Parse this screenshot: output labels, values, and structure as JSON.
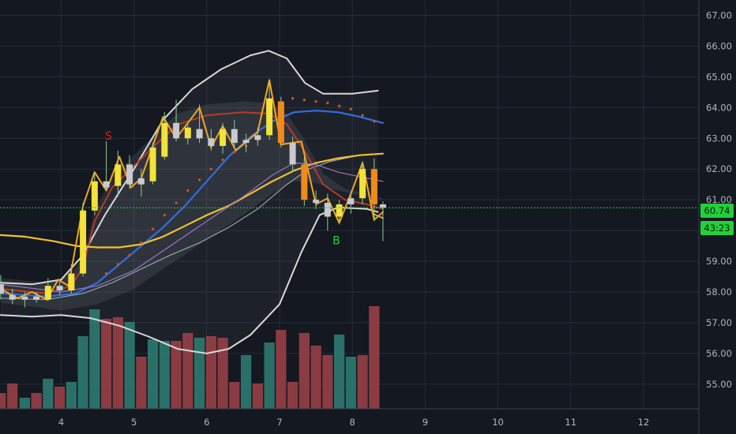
{
  "chart_data": {
    "type": "candlestick",
    "x_ticks": [
      "4",
      "5",
      "6",
      "7",
      "8",
      "9",
      "10",
      "11",
      "12"
    ],
    "y_ticks": [
      "55.00",
      "56.00",
      "57.00",
      "58.00",
      "59.00",
      "60.00",
      "61.00",
      "62.00",
      "63.00",
      "64.00",
      "65.00",
      "66.00",
      "67.00"
    ],
    "ylim": [
      54.2,
      67.5
    ],
    "xlim": [
      3.16,
      12.76
    ],
    "grid": true,
    "current_price": "60.74",
    "countdown": "43:23",
    "price_line_value": 60.74,
    "signals": [
      {
        "label": "S",
        "x": 4.65,
        "y": 62.95,
        "color": "#d01e1e"
      },
      {
        "label": "B",
        "x": 7.78,
        "y": 59.55,
        "color": "#22d03a"
      }
    ],
    "candles": [
      {
        "t": 3.17,
        "o": 58.25,
        "h": 58.55,
        "l": 57.75,
        "c": 57.95
      },
      {
        "t": 3.33,
        "o": 57.9,
        "h": 58.1,
        "l": 57.6,
        "c": 57.75
      },
      {
        "t": 3.5,
        "o": 57.75,
        "h": 58.0,
        "l": 57.5,
        "c": 57.85
      },
      {
        "t": 3.66,
        "o": 57.85,
        "h": 58.0,
        "l": 57.65,
        "c": 57.75
      },
      {
        "t": 3.82,
        "o": 57.75,
        "h": 58.45,
        "l": 57.7,
        "c": 58.2
      },
      {
        "t": 3.98,
        "o": 58.2,
        "h": 58.35,
        "l": 57.9,
        "c": 58.05
      },
      {
        "t": 4.14,
        "o": 58.05,
        "h": 58.9,
        "l": 57.95,
        "c": 58.6
      },
      {
        "t": 4.3,
        "o": 58.6,
        "h": 60.9,
        "l": 58.5,
        "c": 60.65
      },
      {
        "t": 4.46,
        "o": 60.65,
        "h": 61.9,
        "l": 60.5,
        "c": 61.6
      },
      {
        "t": 4.62,
        "o": 61.6,
        "h": 62.9,
        "l": 61.3,
        "c": 61.4
      },
      {
        "t": 4.78,
        "o": 61.45,
        "h": 62.6,
        "l": 61.1,
        "c": 62.15
      },
      {
        "t": 4.94,
        "o": 62.15,
        "h": 62.45,
        "l": 61.35,
        "c": 61.5
      },
      {
        "t": 5.1,
        "o": 61.5,
        "h": 62.0,
        "l": 61.1,
        "c": 61.7
      },
      {
        "t": 5.26,
        "o": 61.6,
        "h": 62.85,
        "l": 61.5,
        "c": 62.7
      },
      {
        "t": 5.42,
        "o": 62.4,
        "h": 63.85,
        "l": 62.3,
        "c": 63.5
      },
      {
        "t": 5.58,
        "o": 63.5,
        "h": 64.25,
        "l": 62.9,
        "c": 63.0
      },
      {
        "t": 5.74,
        "o": 63.0,
        "h": 63.5,
        "l": 62.8,
        "c": 63.35
      },
      {
        "t": 5.9,
        "o": 63.3,
        "h": 64.1,
        "l": 62.85,
        "c": 63.0
      },
      {
        "t": 6.06,
        "o": 63.0,
        "h": 63.3,
        "l": 62.6,
        "c": 62.75
      },
      {
        "t": 6.22,
        "o": 62.75,
        "h": 63.5,
        "l": 62.5,
        "c": 63.3
      },
      {
        "t": 6.38,
        "o": 63.3,
        "h": 63.6,
        "l": 62.7,
        "c": 62.85
      },
      {
        "t": 6.54,
        "o": 62.85,
        "h": 63.15,
        "l": 62.55,
        "c": 62.95
      },
      {
        "t": 6.7,
        "o": 62.95,
        "h": 63.35,
        "l": 62.75,
        "c": 63.1
      },
      {
        "t": 6.86,
        "o": 63.1,
        "h": 64.85,
        "l": 62.95,
        "c": 64.3
      },
      {
        "t": 7.02,
        "o": 64.2,
        "h": 64.35,
        "l": 62.7,
        "c": 62.85
      },
      {
        "t": 7.18,
        "o": 62.85,
        "h": 63.05,
        "l": 61.9,
        "c": 62.15
      },
      {
        "t": 7.34,
        "o": 62.15,
        "h": 62.4,
        "l": 60.8,
        "c": 61.0
      },
      {
        "t": 7.5,
        "o": 61.0,
        "h": 61.3,
        "l": 60.7,
        "c": 60.9
      },
      {
        "t": 7.66,
        "o": 60.9,
        "h": 61.2,
        "l": 60.0,
        "c": 60.45
      },
      {
        "t": 7.82,
        "o": 60.45,
        "h": 61.0,
        "l": 60.2,
        "c": 60.85
      },
      {
        "t": 7.98,
        "o": 60.85,
        "h": 61.25,
        "l": 60.55,
        "c": 61.05
      },
      {
        "t": 8.14,
        "o": 61.05,
        "h": 62.25,
        "l": 60.85,
        "c": 62.0
      },
      {
        "t": 8.3,
        "o": 62.0,
        "h": 62.35,
        "l": 60.3,
        "c": 60.85
      },
      {
        "t": 8.42,
        "o": 60.85,
        "h": 60.95,
        "l": 59.65,
        "c": 60.74
      }
    ],
    "volume": [
      {
        "t": 3.17,
        "v": 0.1,
        "up": false
      },
      {
        "t": 3.33,
        "v": 0.16,
        "up": false
      },
      {
        "t": 3.5,
        "v": 0.07,
        "up": true
      },
      {
        "t": 3.66,
        "v": 0.1,
        "up": false
      },
      {
        "t": 3.82,
        "v": 0.19,
        "up": true
      },
      {
        "t": 3.98,
        "v": 0.14,
        "up": false
      },
      {
        "t": 4.14,
        "v": 0.17,
        "up": true
      },
      {
        "t": 4.3,
        "v": 0.46,
        "up": true
      },
      {
        "t": 4.46,
        "v": 0.63,
        "up": true
      },
      {
        "t": 4.62,
        "v": 0.57,
        "up": false
      },
      {
        "t": 4.78,
        "v": 0.58,
        "up": false
      },
      {
        "t": 4.94,
        "v": 0.55,
        "up": true
      },
      {
        "t": 5.1,
        "v": 0.33,
        "up": false
      },
      {
        "t": 5.26,
        "v": 0.44,
        "up": true
      },
      {
        "t": 5.42,
        "v": 0.43,
        "up": true
      },
      {
        "t": 5.58,
        "v": 0.43,
        "up": false
      },
      {
        "t": 5.74,
        "v": 0.48,
        "up": false
      },
      {
        "t": 5.9,
        "v": 0.45,
        "up": true
      },
      {
        "t": 6.06,
        "v": 0.46,
        "up": false
      },
      {
        "t": 6.22,
        "v": 0.45,
        "up": false
      },
      {
        "t": 6.38,
        "v": 0.17,
        "up": false
      },
      {
        "t": 6.54,
        "v": 0.34,
        "up": true
      },
      {
        "t": 6.7,
        "v": 0.16,
        "up": false
      },
      {
        "t": 6.86,
        "v": 0.42,
        "up": true
      },
      {
        "t": 7.02,
        "v": 0.5,
        "up": false
      },
      {
        "t": 7.18,
        "v": 0.17,
        "up": false
      },
      {
        "t": 7.34,
        "v": 0.48,
        "up": false
      },
      {
        "t": 7.5,
        "v": 0.4,
        "up": false
      },
      {
        "t": 7.66,
        "v": 0.34,
        "up": false
      },
      {
        "t": 7.82,
        "v": 0.47,
        "up": true
      },
      {
        "t": 7.98,
        "v": 0.33,
        "up": true
      },
      {
        "t": 8.14,
        "v": 0.34,
        "up": false
      },
      {
        "t": 8.3,
        "v": 0.65,
        "up": false
      }
    ],
    "series": [
      {
        "style": "bb_upper",
        "color": "#d8d8d8",
        "points": [
          [
            3.17,
            58.3
          ],
          [
            3.6,
            58.25
          ],
          [
            4.0,
            58.4
          ],
          [
            4.3,
            59.2
          ],
          [
            4.6,
            60.5
          ],
          [
            5.0,
            62.0
          ],
          [
            5.4,
            63.6
          ],
          [
            5.8,
            64.6
          ],
          [
            6.2,
            65.25
          ],
          [
            6.6,
            65.7
          ],
          [
            6.85,
            65.85
          ],
          [
            7.1,
            65.6
          ],
          [
            7.35,
            64.8
          ],
          [
            7.6,
            64.45
          ],
          [
            8.0,
            64.45
          ],
          [
            8.35,
            64.55
          ]
        ]
      },
      {
        "style": "bb_lower",
        "color": "#d8d8d8",
        "points": [
          [
            3.17,
            57.25
          ],
          [
            3.6,
            57.2
          ],
          [
            4.0,
            57.25
          ],
          [
            4.4,
            57.15
          ],
          [
            4.8,
            56.9
          ],
          [
            5.2,
            56.55
          ],
          [
            5.6,
            56.15
          ],
          [
            6.0,
            56.0
          ],
          [
            6.3,
            56.15
          ],
          [
            6.6,
            56.6
          ],
          [
            7.0,
            57.6
          ],
          [
            7.3,
            59.3
          ],
          [
            7.55,
            60.5
          ],
          [
            7.8,
            60.75
          ],
          [
            8.2,
            60.7
          ],
          [
            8.35,
            60.6
          ]
        ]
      },
      {
        "style": "bb_mid",
        "color": "#9aa0aa",
        "points": [
          [
            3.17,
            57.8
          ],
          [
            3.8,
            57.75
          ],
          [
            4.3,
            57.95
          ],
          [
            4.7,
            58.3
          ],
          [
            5.1,
            58.75
          ],
          [
            5.5,
            59.2
          ],
          [
            5.9,
            59.6
          ],
          [
            6.3,
            60.1
          ],
          [
            6.7,
            60.7
          ],
          [
            7.1,
            61.5
          ],
          [
            7.4,
            62.0
          ],
          [
            7.7,
            62.25
          ],
          [
            8.1,
            62.45
          ],
          [
            8.35,
            62.5
          ]
        ]
      },
      {
        "style": "ema_red",
        "color": "#b83a28",
        "points": [
          [
            3.17,
            58.1
          ],
          [
            3.8,
            57.95
          ],
          [
            4.14,
            58.2
          ],
          [
            4.3,
            58.8
          ],
          [
            4.46,
            60.3
          ],
          [
            4.7,
            61.4
          ],
          [
            5.0,
            62.1
          ],
          [
            5.3,
            62.8
          ],
          [
            5.6,
            63.45
          ],
          [
            6.0,
            63.75
          ],
          [
            6.5,
            63.85
          ],
          [
            6.86,
            63.8
          ],
          [
            7.1,
            63.45
          ],
          [
            7.34,
            62.6
          ],
          [
            7.6,
            61.5
          ],
          [
            7.9,
            61.0
          ],
          [
            8.2,
            60.85
          ],
          [
            8.42,
            60.7
          ]
        ]
      },
      {
        "style": "ema_blue",
        "color": "#2f6fe0",
        "points": [
          [
            3.17,
            57.95
          ],
          [
            3.8,
            57.85
          ],
          [
            4.2,
            57.95
          ],
          [
            4.5,
            58.3
          ],
          [
            4.8,
            58.9
          ],
          [
            5.1,
            59.5
          ],
          [
            5.4,
            60.1
          ],
          [
            5.7,
            60.8
          ],
          [
            6.0,
            61.6
          ],
          [
            6.3,
            62.4
          ],
          [
            6.6,
            63.05
          ],
          [
            6.9,
            63.55
          ],
          [
            7.2,
            63.85
          ],
          [
            7.5,
            63.9
          ],
          [
            7.8,
            63.85
          ],
          [
            8.1,
            63.7
          ],
          [
            8.42,
            63.5
          ]
        ]
      },
      {
        "style": "ma_yellow",
        "color": "#f0c030",
        "points": [
          [
            3.17,
            59.85
          ],
          [
            3.5,
            59.8
          ],
          [
            3.9,
            59.65
          ],
          [
            4.2,
            59.5
          ],
          [
            4.5,
            59.45
          ],
          [
            4.8,
            59.45
          ],
          [
            5.1,
            59.55
          ],
          [
            5.4,
            59.8
          ],
          [
            5.7,
            60.15
          ],
          [
            6.0,
            60.5
          ],
          [
            6.3,
            60.8
          ],
          [
            6.6,
            61.2
          ],
          [
            6.9,
            61.6
          ],
          [
            7.2,
            61.95
          ],
          [
            7.5,
            62.2
          ],
          [
            7.8,
            62.35
          ],
          [
            8.1,
            62.45
          ],
          [
            8.42,
            62.5
          ]
        ]
      },
      {
        "style": "ma_purple",
        "color": "#9a76c0",
        "points": [
          [
            3.17,
            58.25
          ],
          [
            4.0,
            58.0
          ],
          [
            4.5,
            58.2
          ],
          [
            5.0,
            58.7
          ],
          [
            5.5,
            59.5
          ],
          [
            6.0,
            60.3
          ],
          [
            6.5,
            61.1
          ],
          [
            6.9,
            61.8
          ],
          [
            7.2,
            62.2
          ],
          [
            7.5,
            62.15
          ],
          [
            7.8,
            61.9
          ],
          [
            8.1,
            61.75
          ],
          [
            8.42,
            61.6
          ]
        ]
      },
      {
        "style": "zigzag",
        "color": "#f2a61e",
        "points": [
          [
            3.17,
            58.1
          ],
          [
            3.4,
            57.8
          ],
          [
            3.6,
            58.0
          ],
          [
            3.8,
            57.75
          ],
          [
            3.96,
            58.4
          ],
          [
            4.1,
            58.2
          ],
          [
            4.3,
            60.8
          ],
          [
            4.46,
            61.9
          ],
          [
            4.62,
            61.3
          ],
          [
            4.8,
            62.4
          ],
          [
            4.96,
            61.4
          ],
          [
            5.1,
            61.7
          ],
          [
            5.4,
            63.7
          ],
          [
            5.58,
            63.0
          ],
          [
            5.9,
            64.0
          ],
          [
            6.06,
            62.7
          ],
          [
            6.22,
            63.4
          ],
          [
            6.4,
            62.6
          ],
          [
            6.7,
            63.2
          ],
          [
            6.86,
            64.9
          ],
          [
            7.02,
            62.8
          ],
          [
            7.3,
            62.9
          ],
          [
            7.5,
            60.85
          ],
          [
            7.66,
            61.05
          ],
          [
            7.82,
            60.25
          ],
          [
            7.98,
            61.2
          ],
          [
            8.14,
            62.2
          ],
          [
            8.3,
            60.35
          ],
          [
            8.42,
            60.6
          ]
        ]
      },
      {
        "style": "zigzag2",
        "color": "#f2a61e",
        "points": [
          [
            8.14,
            62.2
          ],
          [
            8.28,
            60.55
          ],
          [
            8.42,
            60.4
          ]
        ]
      }
    ],
    "sar_points": [
      [
        4.62,
        58.6
      ],
      [
        4.78,
        58.9
      ],
      [
        4.94,
        59.2
      ],
      [
        5.1,
        59.6
      ],
      [
        5.26,
        60.05
      ],
      [
        5.42,
        60.5
      ],
      [
        5.58,
        60.9
      ],
      [
        5.74,
        61.3
      ],
      [
        5.9,
        61.65
      ],
      [
        6.06,
        62.0
      ],
      [
        6.22,
        62.3
      ],
      [
        6.38,
        62.55
      ],
      [
        6.54,
        62.75
      ],
      [
        6.7,
        62.95
      ],
      [
        7.18,
        64.3
      ],
      [
        7.34,
        64.25
      ],
      [
        7.5,
        64.2
      ],
      [
        7.66,
        64.15
      ],
      [
        7.82,
        64.05
      ],
      [
        7.98,
        63.95
      ],
      [
        8.14,
        63.75
      ],
      [
        8.3,
        63.55
      ]
    ]
  }
}
